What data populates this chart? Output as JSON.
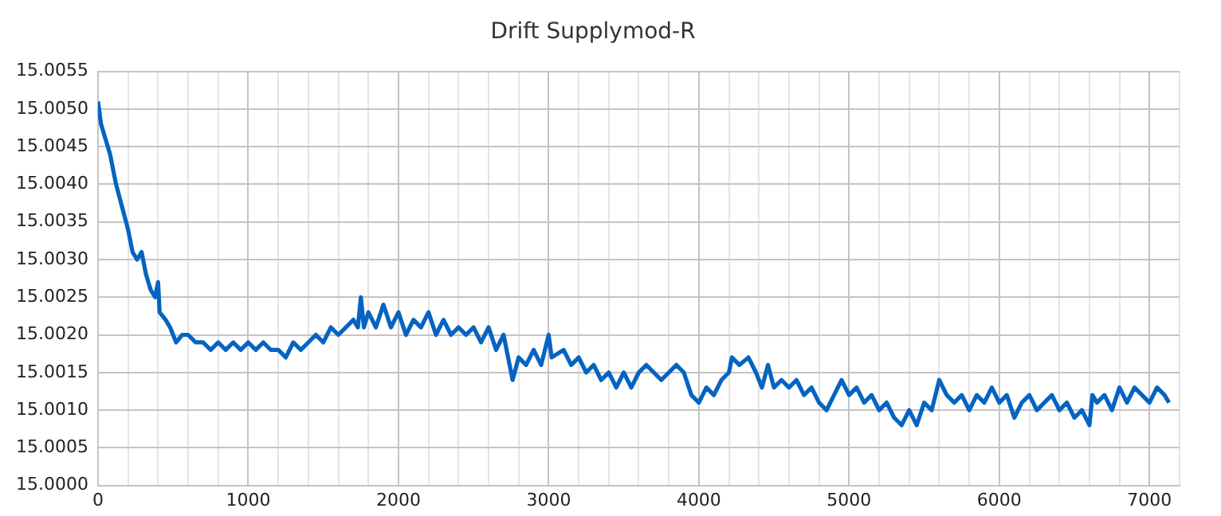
{
  "chart_data": {
    "type": "line",
    "title": "Drift Supplymod-R",
    "x": [
      0,
      20,
      50,
      80,
      120,
      160,
      200,
      230,
      260,
      290,
      320,
      350,
      380,
      400,
      410,
      450,
      480,
      520,
      560,
      600,
      650,
      700,
      750,
      800,
      850,
      900,
      950,
      1000,
      1050,
      1100,
      1150,
      1200,
      1250,
      1300,
      1350,
      1400,
      1450,
      1500,
      1550,
      1600,
      1650,
      1700,
      1730,
      1750,
      1770,
      1800,
      1850,
      1900,
      1950,
      2000,
      2050,
      2100,
      2150,
      2200,
      2250,
      2300,
      2350,
      2400,
      2450,
      2500,
      2550,
      2600,
      2650,
      2700,
      2730,
      2760,
      2800,
      2850,
      2900,
      2950,
      3000,
      3020,
      3100,
      3150,
      3200,
      3250,
      3300,
      3350,
      3400,
      3450,
      3500,
      3550,
      3600,
      3650,
      3700,
      3750,
      3800,
      3850,
      3900,
      3950,
      4000,
      4050,
      4100,
      4150,
      4200,
      4220,
      4270,
      4330,
      4380,
      4420,
      4460,
      4500,
      4550,
      4600,
      4650,
      4700,
      4750,
      4800,
      4850,
      4900,
      4950,
      5000,
      5050,
      5100,
      5150,
      5200,
      5250,
      5300,
      5350,
      5400,
      5450,
      5500,
      5550,
      5600,
      5650,
      5700,
      5750,
      5800,
      5850,
      5900,
      5950,
      6000,
      6050,
      6100,
      6150,
      6200,
      6250,
      6300,
      6350,
      6400,
      6450,
      6500,
      6550,
      6600,
      6620,
      6650,
      6700,
      6750,
      6800,
      6850,
      6900,
      6950,
      7000,
      7050,
      7100,
      7130
    ],
    "series": [
      {
        "color": "#0563c1",
        "values": [
          15.0051,
          15.0048,
          15.0046,
          15.0044,
          15.004,
          15.0037,
          15.0034,
          15.0031,
          15.003,
          15.0031,
          15.0028,
          15.0026,
          15.0025,
          15.0027,
          15.0023,
          15.0022,
          15.0021,
          15.0019,
          15.002,
          15.002,
          15.0019,
          15.0019,
          15.0018,
          15.0019,
          15.0018,
          15.0019,
          15.0018,
          15.0019,
          15.0018,
          15.0019,
          15.0018,
          15.0018,
          15.0017,
          15.0019,
          15.0018,
          15.0019,
          15.002,
          15.0019,
          15.0021,
          15.002,
          15.0021,
          15.0022,
          15.0021,
          15.0025,
          15.0021,
          15.0023,
          15.0021,
          15.0024,
          15.0021,
          15.0023,
          15.002,
          15.0022,
          15.0021,
          15.0023,
          15.002,
          15.0022,
          15.002,
          15.0021,
          15.002,
          15.0021,
          15.0019,
          15.0021,
          15.0018,
          15.002,
          15.0017,
          15.0014,
          15.0017,
          15.0016,
          15.0018,
          15.0016,
          15.002,
          15.0017,
          15.0018,
          15.0016,
          15.0017,
          15.0015,
          15.0016,
          15.0014,
          15.0015,
          15.0013,
          15.0015,
          15.0013,
          15.0015,
          15.0016,
          15.0015,
          15.0014,
          15.0015,
          15.0016,
          15.0015,
          15.0012,
          15.0011,
          15.0013,
          15.0012,
          15.0014,
          15.0015,
          15.0017,
          15.0016,
          15.0017,
          15.0015,
          15.0013,
          15.0016,
          15.0013,
          15.0014,
          15.0013,
          15.0014,
          15.0012,
          15.0013,
          15.0011,
          15.001,
          15.0012,
          15.0014,
          15.0012,
          15.0013,
          15.0011,
          15.0012,
          15.001,
          15.0011,
          15.0009,
          15.0008,
          15.001,
          15.0008,
          15.0011,
          15.001,
          15.0014,
          15.0012,
          15.0011,
          15.0012,
          15.001,
          15.0012,
          15.0011,
          15.0013,
          15.0011,
          15.0012,
          15.0009,
          15.0011,
          15.0012,
          15.001,
          15.0011,
          15.0012,
          15.001,
          15.0011,
          15.0009,
          15.001,
          15.0008,
          15.0012,
          15.0011,
          15.0012,
          15.001,
          15.0013,
          15.0011,
          15.0013,
          15.0012,
          15.0011,
          15.0013,
          15.0012,
          15.0011
        ]
      }
    ],
    "xlim": [
      0,
      7200
    ],
    "xticks": [
      0,
      {
        "value": 200,
        "label": null
      },
      {
        "value": 400,
        "label": null
      },
      {
        "value": 600,
        "label": null
      },
      {
        "value": 800,
        "label": null
      },
      1000,
      {
        "value": 1200,
        "label": null
      },
      {
        "value": 1400,
        "label": null
      },
      {
        "value": 1600,
        "label": null
      },
      {
        "value": 1800,
        "label": null
      },
      2000,
      {
        "value": 2200,
        "label": null
      },
      {
        "value": 2400,
        "label": null
      },
      {
        "value": 2600,
        "label": null
      },
      {
        "value": 2800,
        "label": null
      },
      3000,
      {
        "value": 3200,
        "label": null
      },
      {
        "value": 3400,
        "label": null
      },
      {
        "value": 3600,
        "label": null
      },
      {
        "value": 3800,
        "label": null
      },
      4000,
      {
        "value": 4200,
        "label": null
      },
      {
        "value": 4400,
        "label": null
      },
      {
        "value": 4600,
        "label": null
      },
      {
        "value": 4800,
        "label": null
      },
      5000,
      {
        "value": 5200,
        "label": null
      },
      {
        "value": 5400,
        "label": null
      },
      {
        "value": 5600,
        "label": null
      },
      {
        "value": 5800,
        "label": null
      },
      6000,
      {
        "value": 6200,
        "label": null
      },
      {
        "value": 6400,
        "label": null
      },
      {
        "value": 6600,
        "label": null
      },
      {
        "value": 6800,
        "label": null
      },
      7000,
      {
        "value": 7200,
        "label": null
      }
    ],
    "ylim": [
      15.0,
      15.0055
    ],
    "yticks": [
      {
        "value": 15.0,
        "label": "15.0000"
      },
      {
        "value": 15.0005,
        "label": "15.0005"
      },
      {
        "value": 15.001,
        "label": "15.0010"
      },
      {
        "value": 15.0015,
        "label": "15.0015"
      },
      {
        "value": 15.002,
        "label": "15.0020"
      },
      {
        "value": 15.0025,
        "label": "15.0025"
      },
      {
        "value": 15.003,
        "label": "15.0030"
      },
      {
        "value": 15.0035,
        "label": "15.0035"
      },
      {
        "value": 15.004,
        "label": "15.0040"
      },
      {
        "value": 15.0045,
        "label": "15.0045"
      },
      {
        "value": 15.005,
        "label": "15.0050"
      },
      {
        "value": 15.0055,
        "label": "15.0055"
      }
    ],
    "grid": true,
    "legend": false,
    "marker": "none",
    "line_style": "solid"
  }
}
